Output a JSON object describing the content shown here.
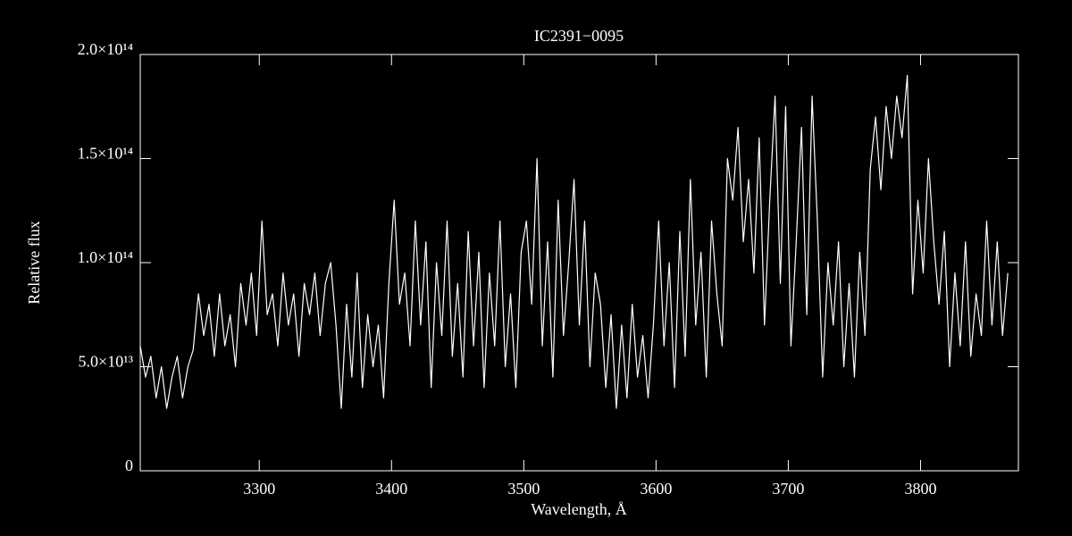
{
  "chart_data": {
    "type": "line",
    "title": "IC2391−0095",
    "x_label": "Wavelength, Å",
    "y_label": "Relative flux",
    "xlim": [
      3210,
      3874
    ],
    "ylim": [
      0,
      200000000000000.0
    ],
    "xticks": [
      3300,
      3400,
      3500,
      3600,
      3700,
      3800
    ],
    "yticks": [
      0,
      {
        "value": 50000000000000.0,
        "label": "5.0×10¹³"
      },
      {
        "value": 100000000000000.0,
        "label": "1.0×10¹⁴"
      },
      {
        "value": 150000000000000.0,
        "label": "1.5×10¹⁴"
      },
      {
        "value": 200000000000000.0,
        "label": "2.0×10¹⁴"
      }
    ],
    "series": [
      {
        "color": "#ffffff",
        "x": [
          3210,
          3214,
          3218,
          3222,
          3226,
          3230,
          3234,
          3238,
          3242,
          3246,
          3250,
          3254,
          3258,
          3262,
          3266,
          3270,
          3274,
          3278,
          3282,
          3286,
          3290,
          3294,
          3298,
          3302,
          3306,
          3310,
          3314,
          3318,
          3322,
          3326,
          3330,
          3334,
          3338,
          3342,
          3346,
          3350,
          3354,
          3358,
          3362,
          3366,
          3370,
          3374,
          3378,
          3382,
          3386,
          3390,
          3394,
          3398,
          3402,
          3406,
          3410,
          3414,
          3418,
          3422,
          3426,
          3430,
          3434,
          3438,
          3442,
          3446,
          3450,
          3454,
          3458,
          3462,
          3466,
          3470,
          3474,
          3478,
          3482,
          3486,
          3490,
          3494,
          3498,
          3502,
          3506,
          3510,
          3514,
          3518,
          3522,
          3526,
          3530,
          3534,
          3538,
          3542,
          3546,
          3550,
          3554,
          3558,
          3562,
          3566,
          3570,
          3574,
          3578,
          3582,
          3586,
          3590,
          3594,
          3598,
          3602,
          3606,
          3610,
          3614,
          3618,
          3622,
          3626,
          3630,
          3634,
          3638,
          3642,
          3646,
          3650,
          3654,
          3658,
          3662,
          3666,
          3670,
          3674,
          3678,
          3682,
          3686,
          3690,
          3694,
          3698,
          3702,
          3706,
          3710,
          3714,
          3718,
          3722,
          3726,
          3730,
          3734,
          3738,
          3742,
          3746,
          3750,
          3754,
          3758,
          3762,
          3766,
          3770,
          3774,
          3778,
          3782,
          3786,
          3790,
          3794,
          3798,
          3802,
          3806,
          3810,
          3814,
          3818,
          3822,
          3826,
          3830,
          3834,
          3838,
          3842,
          3846,
          3850,
          3854,
          3858,
          3862,
          3866
        ],
        "values": [
          60000000000000.0,
          45000000000000.0,
          55000000000000.0,
          35000000000000.0,
          50000000000000.0,
          30000000000000.0,
          45000000000000.0,
          55000000000000.0,
          35000000000000.0,
          50000000000000.0,
          58000000000000.0,
          85000000000000.0,
          65000000000000.0,
          80000000000000.0,
          55000000000000.0,
          85000000000000.0,
          60000000000000.0,
          75000000000000.0,
          50000000000000.0,
          90000000000000.0,
          70000000000000.0,
          95000000000000.0,
          65000000000000.0,
          120000000000000.0,
          75000000000000.0,
          85000000000000.0,
          60000000000000.0,
          95000000000000.0,
          70000000000000.0,
          85000000000000.0,
          55000000000000.0,
          90000000000000.0,
          75000000000000.0,
          95000000000000.0,
          65000000000000.0,
          90000000000000.0,
          100000000000000.0,
          70000000000000.0,
          30000000000000.0,
          80000000000000.0,
          45000000000000.0,
          95000000000000.0,
          40000000000000.0,
          75000000000000.0,
          50000000000000.0,
          70000000000000.0,
          35000000000000.0,
          90000000000000.0,
          130000000000000.0,
          80000000000000.0,
          95000000000000.0,
          60000000000000.0,
          120000000000000.0,
          70000000000000.0,
          110000000000000.0,
          40000000000000.0,
          100000000000000.0,
          65000000000000.0,
          120000000000000.0,
          55000000000000.0,
          90000000000000.0,
          45000000000000.0,
          115000000000000.0,
          60000000000000.0,
          105000000000000.0,
          40000000000000.0,
          95000000000000.0,
          60000000000000.0,
          120000000000000.0,
          50000000000000.0,
          85000000000000.0,
          40000000000000.0,
          105000000000000.0,
          120000000000000.0,
          80000000000000.0,
          150000000000000.0,
          60000000000000.0,
          110000000000000.0,
          45000000000000.0,
          130000000000000.0,
          65000000000000.0,
          100000000000000.0,
          140000000000000.0,
          70000000000000.0,
          120000000000000.0,
          50000000000000.0,
          95000000000000.0,
          80000000000000.0,
          40000000000000.0,
          75000000000000.0,
          30000000000000.0,
          70000000000000.0,
          35000000000000.0,
          80000000000000.0,
          45000000000000.0,
          65000000000000.0,
          35000000000000.0,
          70000000000000.0,
          120000000000000.0,
          60000000000000.0,
          100000000000000.0,
          40000000000000.0,
          115000000000000.0,
          55000000000000.0,
          140000000000000.0,
          70000000000000.0,
          105000000000000.0,
          45000000000000.0,
          120000000000000.0,
          85000000000000.0,
          60000000000000.0,
          150000000000000.0,
          130000000000000.0,
          165000000000000.0,
          110000000000000.0,
          140000000000000.0,
          95000000000000.0,
          160000000000000.0,
          70000000000000.0,
          130000000000000.0,
          180000000000000.0,
          90000000000000.0,
          175000000000000.0,
          60000000000000.0,
          110000000000000.0,
          165000000000000.0,
          75000000000000.0,
          180000000000000.0,
          120000000000000.0,
          45000000000000.0,
          100000000000000.0,
          70000000000000.0,
          110000000000000.0,
          50000000000000.0,
          90000000000000.0,
          45000000000000.0,
          105000000000000.0,
          65000000000000.0,
          145000000000000.0,
          170000000000000.0,
          135000000000000.0,
          175000000000000.0,
          150000000000000.0,
          180000000000000.0,
          160000000000000.0,
          190000000000000.0,
          85000000000000.0,
          130000000000000.0,
          95000000000000.0,
          150000000000000.0,
          110000000000000.0,
          80000000000000.0,
          115000000000000.0,
          50000000000000.0,
          95000000000000.0,
          60000000000000.0,
          110000000000000.0,
          55000000000000.0,
          85000000000000.0,
          65000000000000.0,
          120000000000000.0,
          70000000000000.0,
          110000000000000.0,
          65000000000000.0,
          95000000000000.0
        ]
      }
    ]
  }
}
